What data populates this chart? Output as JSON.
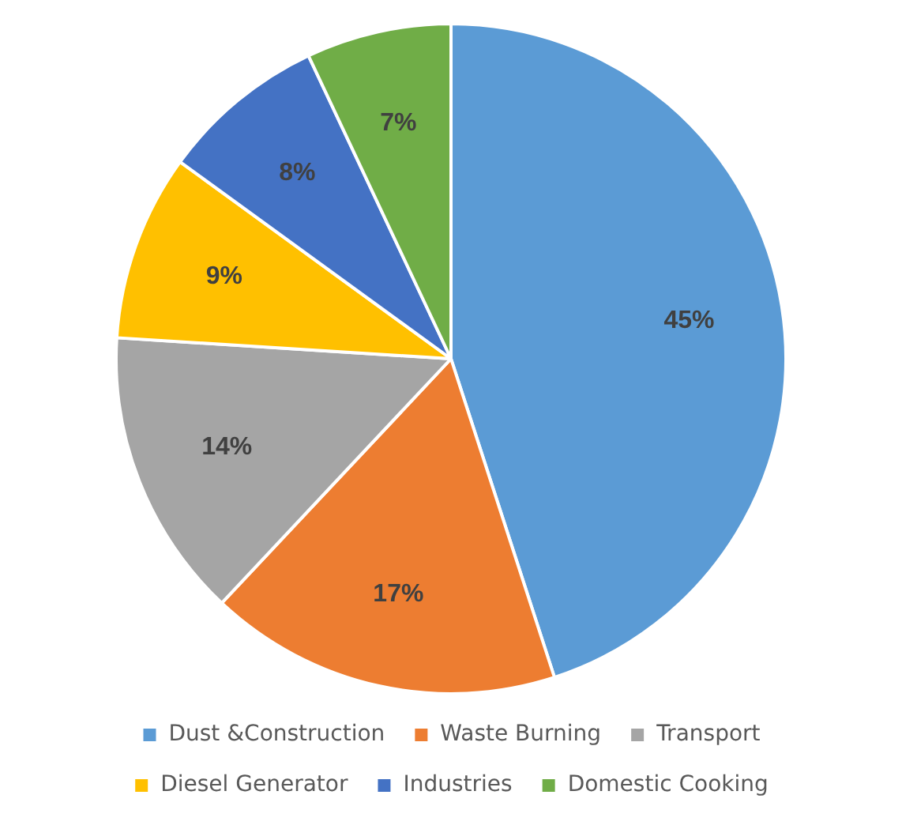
{
  "chart_data": {
    "type": "pie",
    "categories": [
      "Dust &Construction",
      "Waste Burning",
      "Transport",
      "Diesel Generator",
      "Industries",
      "Domestic Cooking"
    ],
    "values": [
      45,
      17,
      14,
      9,
      8,
      7
    ],
    "colors": [
      "#5b9bd5",
      "#ed7d31",
      "#a5a5a5",
      "#ffc000",
      "#4472c4",
      "#70ad47"
    ],
    "value_labels": [
      "45%",
      "17%",
      "14%",
      "9%",
      "8%",
      "7%"
    ],
    "legend": "bottom"
  }
}
